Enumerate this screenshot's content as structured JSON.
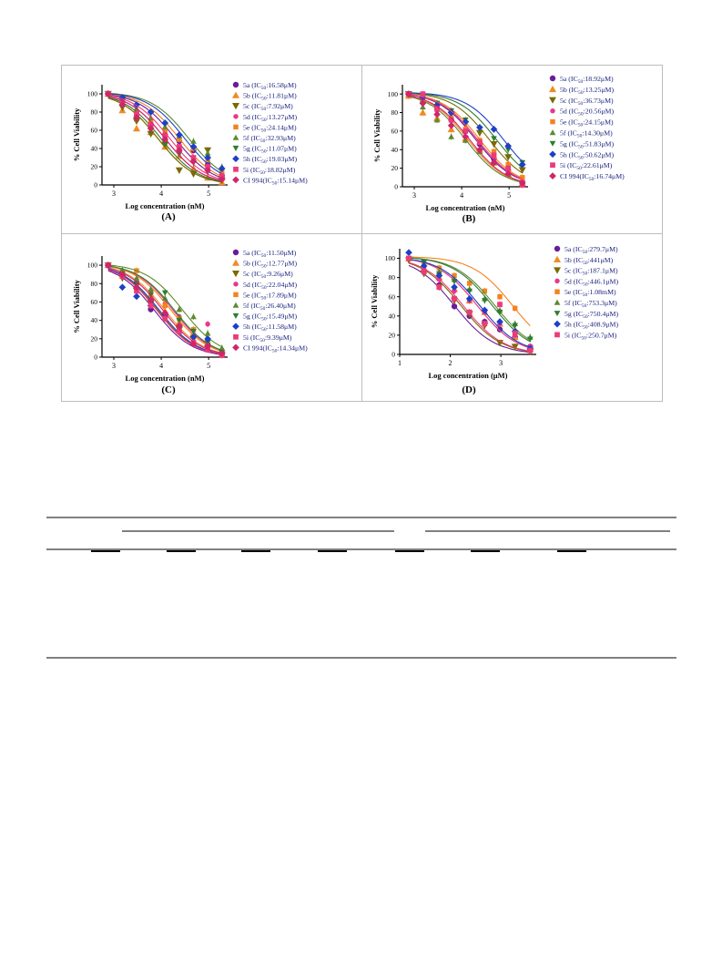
{
  "colors": {
    "5a": "#6a1b9a",
    "5b": "#f08a24",
    "5c": "#7a6a00",
    "5d": "#e8388a",
    "5e": "#f5821f",
    "5f": "#5e8a2e",
    "5g": "#2e7d32",
    "5h": "#1e3fc8",
    "5i": "#ec3b7a",
    "CI994": "#d0256a",
    "frame": "#bdbdbd",
    "axis": "#000000",
    "legend_text": "#1a237e"
  },
  "chart_data": [
    {
      "type": "scatter",
      "panel_label": "(A)",
      "xlabel": "Log concentration (nM)",
      "ylabel": "% Cell Viability",
      "xlim": [
        2.75,
        5.4
      ],
      "ylim": [
        0,
        110
      ],
      "xticks": [
        "3",
        "4",
        "5"
      ],
      "yticks": [
        "0",
        "20",
        "40",
        "60",
        "80",
        "100"
      ],
      "x": [
        2.88,
        3.18,
        3.48,
        3.78,
        4.08,
        4.38,
        4.68,
        4.98,
        5.28
      ],
      "series": [
        {
          "name": "5a (IC50:16.58μM)",
          "prefix": "5a (IC",
          "sub": "50",
          "suffix": ":16.58μM)",
          "id": "5a",
          "marker": "circle",
          "values": [
            100,
            95,
            72,
            66,
            55,
            48,
            38,
            22,
            10
          ]
        },
        {
          "name": "5b (IC50:11.81μM)",
          "prefix": "5b (IC",
          "sub": "50",
          "suffix": ":11.81μM)",
          "id": "5b",
          "marker": "triangle-up",
          "values": [
            100,
            82,
            62,
            58,
            42,
            32,
            18,
            8,
            3
          ]
        },
        {
          "name": "5c (IC50:7.92μM)",
          "prefix": "5c (IC",
          "sub": "50",
          "suffix": ":7.92μM)",
          "id": "5c",
          "marker": "triangle-down",
          "values": [
            100,
            85,
            70,
            56,
            44,
            16,
            12,
            38,
            5
          ]
        },
        {
          "name": "5d (IC50:13.27μM)",
          "prefix": "5d (IC",
          "sub": "50",
          "suffix": ":13.27μM)",
          "id": "5d",
          "marker": "circle-small",
          "values": [
            100,
            90,
            76,
            62,
            50,
            40,
            30,
            18,
            8
          ]
        },
        {
          "name": "5e (IC50:24.14μM)",
          "prefix": "5e (IC",
          "sub": "50",
          "suffix": ":24.14μM)",
          "id": "5e",
          "marker": "square",
          "values": [
            100,
            92,
            80,
            70,
            60,
            50,
            40,
            28,
            14
          ]
        },
        {
          "name": "5f (IC50:32.93μM)",
          "prefix": "5f (IC",
          "sub": "50",
          "suffix": ":32.93μM)",
          "id": "5f",
          "marker": "triangle-up-small",
          "values": [
            100,
            94,
            84,
            74,
            64,
            54,
            48,
            35,
            20
          ]
        },
        {
          "name": "5g (IC50:11.07μM)",
          "prefix": "5g (IC",
          "sub": "50",
          "suffix": ":11.07μM)",
          "id": "5g",
          "marker": "triangle-down-small",
          "values": [
            100,
            88,
            74,
            60,
            46,
            34,
            24,
            14,
            6
          ]
        },
        {
          "name": "5h (IC50:19.03μM)",
          "prefix": "5h (IC",
          "sub": "50",
          "suffix": ":19.03μM)",
          "id": "5h",
          "marker": "diamond",
          "values": [
            100,
            96,
            88,
            80,
            68,
            55,
            42,
            30,
            18
          ]
        },
        {
          "name": "5i (IC50:18.82μM)",
          "prefix": "5i (IC",
          "sub": "50",
          "suffix": ":18.82μM)",
          "id": "5i",
          "marker": "square-pink",
          "values": [
            100,
            90,
            78,
            66,
            54,
            42,
            30,
            20,
            10
          ]
        },
        {
          "name": "CI 994(IC50:15.14μM)",
          "prefix": "CI 994(IC",
          "sub": "50",
          "suffix": ":15.14μM)",
          "id": "CI994",
          "marker": "diamond-pink",
          "values": [
            100,
            88,
            74,
            62,
            50,
            38,
            26,
            16,
            6
          ]
        }
      ]
    },
    {
      "type": "scatter",
      "panel_label": "(B)",
      "xlabel": "Log concentration (nM)",
      "ylabel": "% Cell Viability",
      "xlim": [
        2.75,
        5.4
      ],
      "ylim": [
        0,
        110
      ],
      "xticks": [
        "3",
        "4",
        "5"
      ],
      "yticks": [
        "0",
        "20",
        "40",
        "60",
        "80",
        "100"
      ],
      "x": [
        2.88,
        3.18,
        3.48,
        3.78,
        4.08,
        4.38,
        4.68,
        4.98,
        5.28
      ],
      "series": [
        {
          "name": "5a (IC50:18.92μM)",
          "prefix": "5a (IC",
          "sub": "50",
          "suffix": ":18.92μM)",
          "id": "5a",
          "marker": "circle",
          "values": [
            100,
            92,
            84,
            72,
            60,
            46,
            30,
            18,
            5
          ]
        },
        {
          "name": "5b (IC50:13.25μM)",
          "prefix": "5b (IC",
          "sub": "50",
          "suffix": ":13.25μM)",
          "id": "5b",
          "marker": "triangle-up",
          "values": [
            98,
            80,
            74,
            62,
            52,
            40,
            26,
            14,
            4
          ]
        },
        {
          "name": "5c (IC50:36.73μM)",
          "prefix": "5c (IC",
          "sub": "50",
          "suffix": ":36.73μM)",
          "id": "5c",
          "marker": "triangle-down",
          "values": [
            100,
            94,
            86,
            78,
            68,
            58,
            46,
            32,
            18
          ]
        },
        {
          "name": "5d (IC50:20.56μM)",
          "prefix": "5d (IC",
          "sub": "50",
          "suffix": ":20.56μM)",
          "id": "5d",
          "marker": "circle-small",
          "values": [
            100,
            92,
            82,
            72,
            60,
            48,
            34,
            18,
            6
          ]
        },
        {
          "name": "5e (IC50:24.15μM)",
          "prefix": "5e (IC",
          "sub": "50",
          "suffix": ":24.15μM)",
          "id": "5e",
          "marker": "square",
          "values": [
            100,
            94,
            84,
            74,
            62,
            50,
            38,
            24,
            10
          ]
        },
        {
          "name": "5f (IC50:14.30μM)",
          "prefix": "5f (IC",
          "sub": "50",
          "suffix": ":14.30μM)",
          "id": "5f",
          "marker": "triangle-up-small",
          "values": [
            100,
            86,
            72,
            54,
            50,
            38,
            26,
            14,
            4
          ]
        },
        {
          "name": "5g (IC50:51.83μM)",
          "prefix": "5g (IC",
          "sub": "50",
          "suffix": ":51.83μM)",
          "id": "5g",
          "marker": "triangle-down-small",
          "values": [
            100,
            96,
            90,
            82,
            72,
            62,
            52,
            40,
            26
          ]
        },
        {
          "name": "5h (IC50:50.62μM)",
          "prefix": "5h (IC",
          "sub": "50",
          "suffix": ":50.62μM)",
          "id": "5h",
          "marker": "diamond",
          "values": [
            100,
            96,
            88,
            80,
            70,
            64,
            62,
            44,
            24
          ]
        },
        {
          "name": "5i (IC50:22.61μM)",
          "prefix": "5i (IC",
          "sub": "50",
          "suffix": ":22.61μM)",
          "id": "5i",
          "marker": "square-pink",
          "values": [
            100,
            100,
            84,
            72,
            60,
            48,
            34,
            20,
            2
          ]
        },
        {
          "name": "CI 994(IC50:16.74μM)",
          "prefix": "CI 994(IC",
          "sub": "50",
          "suffix": ":16.74μM)",
          "id": "CI994",
          "marker": "diamond-pink",
          "values": [
            100,
            90,
            78,
            66,
            54,
            40,
            26,
            14,
            4
          ]
        }
      ]
    },
    {
      "type": "scatter",
      "panel_label": "(C)",
      "xlabel": "Log concentration (nM)",
      "ylabel": "% Cell Viability",
      "xlim": [
        2.75,
        5.4
      ],
      "ylim": [
        0,
        110
      ],
      "xticks": [
        "3",
        "4",
        "5"
      ],
      "yticks": [
        "0",
        "20",
        "40",
        "60",
        "80",
        "100"
      ],
      "x": [
        2.88,
        3.18,
        3.48,
        3.78,
        4.08,
        4.38,
        4.68,
        4.98,
        5.28
      ],
      "series": [
        {
          "name": "5a (IC50:11.50μM)",
          "prefix": "5a (IC",
          "sub": "50",
          "suffix": ":11.50μM)",
          "id": "5a",
          "marker": "circle",
          "values": [
            100,
            92,
            80,
            52,
            44,
            34,
            24,
            14,
            4
          ]
        },
        {
          "name": "5b (IC50:12.77μM)",
          "prefix": "5b (IC",
          "sub": "50",
          "suffix": ":12.77μM)",
          "id": "5b",
          "marker": "triangle-up",
          "values": [
            100,
            90,
            78,
            66,
            50,
            38,
            26,
            14,
            4
          ]
        },
        {
          "name": "5c (IC50:9.26μM)",
          "prefix": "5c (IC",
          "sub": "50",
          "suffix": ":9.26μM)",
          "id": "5c",
          "marker": "triangle-down",
          "values": [
            100,
            86,
            72,
            58,
            42,
            30,
            20,
            10,
            3
          ]
        },
        {
          "name": "5d (IC50:22.04μM)",
          "prefix": "5d (IC",
          "sub": "50",
          "suffix": ":22.04μM)",
          "id": "5d",
          "marker": "circle-small",
          "values": [
            100,
            94,
            82,
            70,
            58,
            44,
            30,
            36,
            6
          ]
        },
        {
          "name": "5e (IC50:17.89μM)",
          "prefix": "5e (IC",
          "sub": "50",
          "suffix": ":17.89μM)",
          "id": "5e",
          "marker": "square",
          "values": [
            100,
            92,
            94,
            68,
            56,
            42,
            30,
            18,
            6
          ]
        },
        {
          "name": "5f (IC50:26.40μM)",
          "prefix": "5f (IC",
          "sub": "50",
          "suffix": ":26.40μM)",
          "id": "5f",
          "marker": "triangle-up-small",
          "values": [
            100,
            95,
            86,
            74,
            64,
            52,
            44,
            26,
            10
          ]
        },
        {
          "name": "5g (IC50:15.49μM)",
          "prefix": "5g (IC",
          "sub": "50",
          "suffix": ":15.49μM)",
          "id": "5g",
          "marker": "triangle-down-small",
          "values": [
            100,
            90,
            80,
            68,
            70,
            40,
            28,
            16,
            5
          ]
        },
        {
          "name": "5h (IC50:11.58μM)",
          "prefix": "5h (IC",
          "sub": "50",
          "suffix": ":11.58μM)",
          "id": "5h",
          "marker": "diamond",
          "values": [
            100,
            76,
            66,
            56,
            46,
            34,
            22,
            20,
            4
          ]
        },
        {
          "name": "5i (IC50:9.39μM)",
          "prefix": "5i (IC",
          "sub": "50",
          "suffix": ":9.39μM)",
          "id": "5i",
          "marker": "square-pink",
          "values": [
            100,
            88,
            72,
            56,
            42,
            28,
            16,
            8,
            2
          ]
        },
        {
          "name": "CI 994(IC50:14.34μM)",
          "prefix": "CI 994(IC",
          "sub": "50",
          "suffix": ":14.34μM)",
          "id": "CI994",
          "marker": "diamond-pink",
          "values": [
            100,
            90,
            76,
            62,
            48,
            34,
            14,
            12,
            4
          ]
        }
      ]
    },
    {
      "type": "scatter",
      "panel_label": "(D)",
      "xlabel": "Log concentration (μM)",
      "ylabel": "% Cell Viability",
      "xlim": [
        1.0,
        3.7
      ],
      "ylim": [
        0,
        110
      ],
      "xticks": [
        "1",
        "2",
        "3"
      ],
      "yticks": [
        "0",
        "20",
        "40",
        "60",
        "80",
        "100"
      ],
      "x": [
        1.18,
        1.48,
        1.78,
        2.08,
        2.38,
        2.68,
        2.98,
        3.28,
        3.58
      ],
      "series": [
        {
          "name": "5a (IC50:279.7μM)",
          "prefix": "5a (IC",
          "sub": "50",
          "suffix": ":279.7μM)",
          "id": "5a",
          "marker": "circle",
          "values": [
            100,
            86,
            72,
            50,
            40,
            34,
            26,
            18,
            8
          ]
        },
        {
          "name": "5b (IC50:441μM)",
          "prefix": "5b (IC",
          "sub": "50",
          "suffix": ":441μM)",
          "id": "5b",
          "marker": "triangle-up",
          "values": [
            100,
            90,
            80,
            68,
            56,
            44,
            32,
            18,
            6
          ]
        },
        {
          "name": "5c (IC50:187.1μM)",
          "prefix": "5c (IC",
          "sub": "50",
          "suffix": ":187.1μM)",
          "id": "5c",
          "marker": "triangle-down",
          "values": [
            98,
            84,
            70,
            56,
            42,
            30,
            12,
            8,
            3
          ]
        },
        {
          "name": "5d (IC50:446.1μM)",
          "prefix": "5d (IC",
          "sub": "50",
          "suffix": ":446.1μM)",
          "id": "5d",
          "marker": "circle-small",
          "values": [
            100,
            88,
            78,
            66,
            56,
            44,
            32,
            20,
            8
          ]
        },
        {
          "name": "5e (IC50:1.08mM)",
          "prefix": "5e (IC",
          "sub": "50",
          "suffix": ":1.08mM)",
          "id": "5e",
          "marker": "square",
          "values": [
            100,
            96,
            90,
            82,
            74,
            66,
            60,
            48,
            4
          ]
        },
        {
          "name": "5f (IC50:753.3μM)",
          "prefix": "5f (IC",
          "sub": "50",
          "suffix": ":753.3μM)",
          "id": "5f",
          "marker": "triangle-up-small",
          "values": [
            100,
            94,
            86,
            78,
            68,
            58,
            46,
            32,
            18
          ]
        },
        {
          "name": "5g (IC50:750.4μM)",
          "prefix": "5g (IC",
          "sub": "50",
          "suffix": ":750.4μM)",
          "id": "5g",
          "marker": "triangle-down-small",
          "values": [
            100,
            96,
            84,
            76,
            66,
            56,
            44,
            30,
            16
          ]
        },
        {
          "name": "5h (IC50:408.9μM)",
          "prefix": "5h (IC",
          "sub": "50",
          "suffix": ":408.9μM)",
          "id": "5h",
          "marker": "diamond",
          "values": [
            106,
            92,
            82,
            70,
            58,
            46,
            34,
            24,
            6
          ]
        },
        {
          "name": "5i (IC50:250.7μM)",
          "prefix": "5i (IC",
          "sub": "50",
          "suffix": ":250.7μM)",
          "id": "5i",
          "marker": "square-pink",
          "values": [
            100,
            86,
            70,
            58,
            44,
            32,
            52,
            22,
            4
          ]
        }
      ]
    }
  ]
}
